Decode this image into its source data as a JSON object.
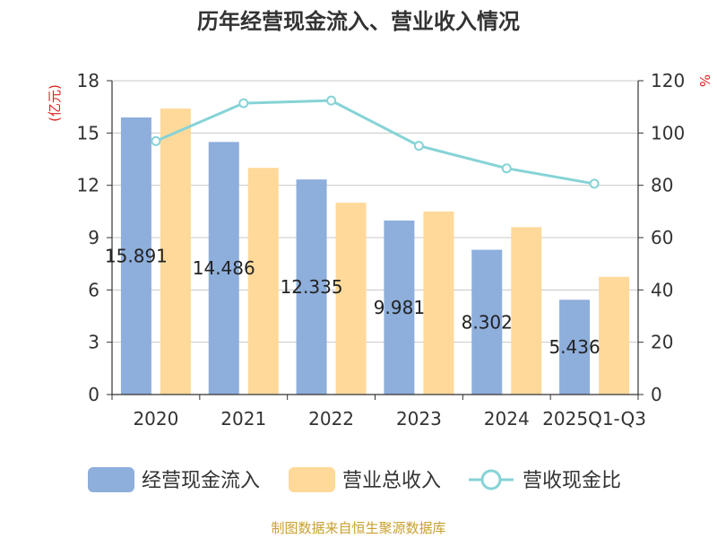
{
  "chart_data": {
    "type": "bar",
    "title": "历年经营现金流入、营业收入情况",
    "ylabel_left": "(亿元)",
    "ylabel_right": "%",
    "categories": [
      "2020",
      "2021",
      "2022",
      "2023",
      "2024",
      "2025Q1-Q3"
    ],
    "left_axis": {
      "min": 0,
      "max": 18,
      "ticks": [
        "0",
        "3",
        "6",
        "9",
        "12",
        "15",
        "18"
      ]
    },
    "right_axis": {
      "min": 0,
      "max": 120,
      "ticks": [
        "0",
        "20",
        "40",
        "60",
        "80",
        "100",
        "120"
      ]
    },
    "grid": true,
    "legend_position": "bottom",
    "series": [
      {
        "name": "经营现金流入",
        "kind": "bar",
        "axis": "left",
        "color": "#8eaedc",
        "values": [
          15.891,
          14.486,
          12.335,
          9.981,
          8.302,
          5.436
        ],
        "labels": [
          "15.891",
          "14.486",
          "12.335",
          "9.981",
          "8.302",
          "5.436"
        ]
      },
      {
        "name": "营业总收入",
        "kind": "bar",
        "axis": "left",
        "color": "#ffd99a",
        "values": [
          16.4,
          13.0,
          11.0,
          10.5,
          9.6,
          6.75
        ]
      },
      {
        "name": "营收现金比",
        "kind": "line",
        "axis": "right",
        "color": "#86d3d6",
        "values": [
          96.9,
          111.4,
          112.4,
          95.1,
          86.5,
          80.6
        ]
      }
    ]
  },
  "source": "制图数据来自恒生聚源数据库"
}
